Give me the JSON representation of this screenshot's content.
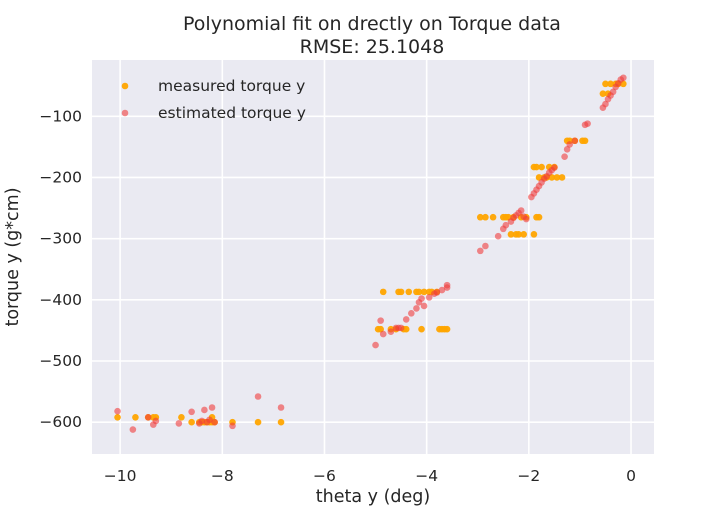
{
  "chart_data": {
    "type": "scatter",
    "title": "Polynomial fit on drectly on Torque data",
    "subtitle": "RMSE: 25.1048",
    "xlabel": "theta y (deg)",
    "ylabel": "torque y (g*cm)",
    "xlim": [
      -10.55,
      0.45
    ],
    "ylim": [
      -652,
      -8
    ],
    "xticks": [
      -10,
      -8,
      -6,
      -4,
      -2,
      0
    ],
    "yticks": [
      -600,
      -500,
      -400,
      -300,
      -200,
      -100
    ],
    "xtick_labels": [
      "−10",
      "−8",
      "−6",
      "−4",
      "−2",
      "0"
    ],
    "ytick_labels": [
      "−600",
      "−500",
      "−400",
      "−300",
      "−200",
      "−100"
    ],
    "grid": true,
    "legend_position": "top-left",
    "background": "#eaeaf2",
    "series": [
      {
        "name": "measured torque y",
        "color": "#ffa500",
        "points": [
          [
            -10.05,
            -592
          ],
          [
            -9.7,
            -592
          ],
          [
            -9.45,
            -592
          ],
          [
            -9.35,
            -592
          ],
          [
            -9.3,
            -592
          ],
          [
            -8.8,
            -592
          ],
          [
            -8.6,
            -600
          ],
          [
            -8.45,
            -600
          ],
          [
            -8.4,
            -600
          ],
          [
            -8.35,
            -600
          ],
          [
            -8.3,
            -600
          ],
          [
            -8.25,
            -600
          ],
          [
            -8.2,
            -600
          ],
          [
            -8.2,
            -592
          ],
          [
            -8.15,
            -600
          ],
          [
            -7.8,
            -600
          ],
          [
            -7.3,
            -600
          ],
          [
            -6.85,
            -600
          ],
          [
            -4.95,
            -448
          ],
          [
            -4.9,
            -448
          ],
          [
            -4.85,
            -387
          ],
          [
            -4.7,
            -448
          ],
          [
            -4.6,
            -448
          ],
          [
            -4.55,
            -387
          ],
          [
            -4.5,
            -387
          ],
          [
            -4.45,
            -448
          ],
          [
            -4.4,
            -448
          ],
          [
            -4.35,
            -387
          ],
          [
            -4.2,
            -387
          ],
          [
            -4.15,
            -387
          ],
          [
            -4.1,
            -448
          ],
          [
            -4.05,
            -387
          ],
          [
            -3.95,
            -387
          ],
          [
            -3.9,
            -387
          ],
          [
            -3.8,
            -387
          ],
          [
            -3.75,
            -448
          ],
          [
            -3.7,
            -448
          ],
          [
            -3.65,
            -448
          ],
          [
            -3.6,
            -448
          ],
          [
            -2.95,
            -265
          ],
          [
            -2.85,
            -265
          ],
          [
            -2.7,
            -265
          ],
          [
            -2.5,
            -265
          ],
          [
            -2.45,
            -265
          ],
          [
            -2.4,
            -265
          ],
          [
            -2.35,
            -293
          ],
          [
            -2.3,
            -265
          ],
          [
            -2.25,
            -293
          ],
          [
            -2.2,
            -293
          ],
          [
            -2.15,
            -265
          ],
          [
            -2.1,
            -293
          ],
          [
            -2.05,
            -265
          ],
          [
            -1.9,
            -293
          ],
          [
            -1.85,
            -265
          ],
          [
            -1.8,
            -265
          ],
          [
            -1.9,
            -183
          ],
          [
            -1.85,
            -183
          ],
          [
            -1.8,
            -200
          ],
          [
            -1.75,
            -183
          ],
          [
            -1.7,
            -200
          ],
          [
            -1.65,
            -200
          ],
          [
            -1.6,
            -183
          ],
          [
            -1.55,
            -200
          ],
          [
            -1.5,
            -183
          ],
          [
            -1.45,
            -200
          ],
          [
            -1.35,
            -200
          ],
          [
            -1.25,
            -140
          ],
          [
            -1.2,
            -140
          ],
          [
            -1.1,
            -140
          ],
          [
            -0.95,
            -140
          ],
          [
            -0.9,
            -140
          ],
          [
            -0.55,
            -63
          ],
          [
            -0.45,
            -63
          ],
          [
            -0.5,
            -47
          ],
          [
            -0.4,
            -47
          ],
          [
            -0.3,
            -47
          ],
          [
            -0.25,
            -47
          ],
          [
            -0.15,
            -47
          ]
        ]
      },
      {
        "name": "estimated torque y",
        "color": "#f03c3c",
        "points": [
          [
            -10.05,
            -582
          ],
          [
            -9.75,
            -612
          ],
          [
            -9.45,
            -592
          ],
          [
            -9.35,
            -604
          ],
          [
            -9.3,
            -598
          ],
          [
            -8.85,
            -602
          ],
          [
            -8.6,
            -583
          ],
          [
            -8.45,
            -602
          ],
          [
            -8.4,
            -598
          ],
          [
            -8.35,
            -580
          ],
          [
            -8.3,
            -600
          ],
          [
            -8.25,
            -596
          ],
          [
            -8.2,
            -576
          ],
          [
            -8.15,
            -600
          ],
          [
            -7.8,
            -606
          ],
          [
            -7.3,
            -558
          ],
          [
            -6.85,
            -576
          ],
          [
            -5.0,
            -474
          ],
          [
            -4.9,
            -434
          ],
          [
            -4.85,
            -456
          ],
          [
            -4.7,
            -452
          ],
          [
            -4.6,
            -446
          ],
          [
            -4.55,
            -446
          ],
          [
            -4.5,
            -446
          ],
          [
            -4.4,
            -432
          ],
          [
            -4.3,
            -422
          ],
          [
            -4.2,
            -414
          ],
          [
            -4.15,
            -404
          ],
          [
            -4.1,
            -398
          ],
          [
            -4.05,
            -410
          ],
          [
            -3.95,
            -396
          ],
          [
            -3.85,
            -390
          ],
          [
            -3.8,
            -388
          ],
          [
            -3.7,
            -384
          ],
          [
            -3.6,
            -380
          ],
          [
            -3.6,
            -376
          ],
          [
            -2.95,
            -320
          ],
          [
            -2.85,
            -312
          ],
          [
            -2.6,
            -296
          ],
          [
            -2.5,
            -284
          ],
          [
            -2.45,
            -278
          ],
          [
            -2.35,
            -272
          ],
          [
            -2.3,
            -266
          ],
          [
            -2.25,
            -262
          ],
          [
            -2.2,
            -258
          ],
          [
            -2.15,
            -254
          ],
          [
            -2.1,
            -264
          ],
          [
            -2.05,
            -268
          ],
          [
            -1.95,
            -232
          ],
          [
            -1.9,
            -226
          ],
          [
            -1.85,
            -220
          ],
          [
            -1.8,
            -214
          ],
          [
            -1.75,
            -208
          ],
          [
            -1.7,
            -202
          ],
          [
            -1.65,
            -198
          ],
          [
            -1.6,
            -192
          ],
          [
            -1.55,
            -188
          ],
          [
            -1.5,
            -184
          ],
          [
            -1.3,
            -166
          ],
          [
            -1.25,
            -154
          ],
          [
            -1.2,
            -146
          ],
          [
            -1.1,
            -140
          ],
          [
            -0.9,
            -114
          ],
          [
            -0.85,
            -112
          ],
          [
            -0.55,
            -86
          ],
          [
            -0.5,
            -80
          ],
          [
            -0.45,
            -72
          ],
          [
            -0.4,
            -66
          ],
          [
            -0.35,
            -60
          ],
          [
            -0.3,
            -52
          ],
          [
            -0.25,
            -46
          ],
          [
            -0.2,
            -40
          ],
          [
            -0.15,
            -37
          ]
        ]
      }
    ]
  }
}
